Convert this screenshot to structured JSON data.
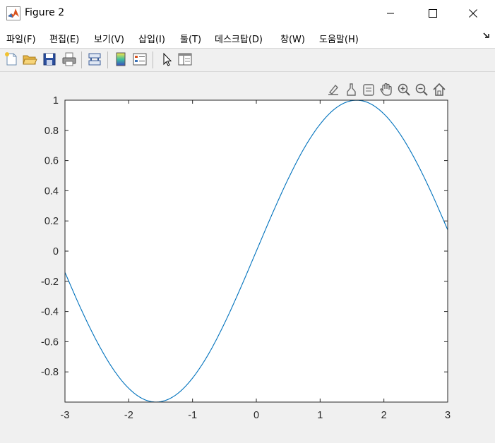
{
  "window": {
    "title": "Figure 2",
    "app_icon": "matlab-icon",
    "controls": [
      "minimize-icon",
      "maximize-icon",
      "close-icon"
    ]
  },
  "menu": {
    "items": [
      "파일(F)",
      "편집(E)",
      "보기(V)",
      "삽입(I)",
      "툴(T)",
      "데스크탑(D)",
      "창(W)",
      "도움말(H)"
    ],
    "dock_icon": "dock-arrow-icon"
  },
  "toolbar": {
    "buttons": [
      "new-figure-icon",
      "open-file-icon",
      "save-icon",
      "print-icon",
      "link-plot-icon",
      "insert-colorbar-icon",
      "insert-legend-icon",
      "edit-plot-arrow-icon",
      "property-inspector-icon"
    ]
  },
  "axes_toolbar": {
    "buttons": [
      "brush-edit-icon",
      "data-tips-icon",
      "datatip-list-icon",
      "pan-hand-icon",
      "zoom-in-icon",
      "zoom-out-icon",
      "home-reset-icon"
    ]
  },
  "chart_data": {
    "type": "line",
    "title": "",
    "xlabel": "",
    "ylabel": "",
    "xlim": [
      -3,
      3
    ],
    "ylim": [
      -1,
      1
    ],
    "xticks": [
      "-3",
      "-2",
      "-1",
      "0",
      "1",
      "2",
      "3"
    ],
    "yticks": [
      "1",
      "0.8",
      "0.6",
      "0.4",
      "0.2",
      "0",
      "-0.2",
      "-0.4",
      "-0.6",
      "-0.8"
    ],
    "series": [
      {
        "function": "sin(x)",
        "color": "#0072bd",
        "x": [
          -3,
          -2.75,
          -2.5,
          -2.25,
          -2,
          -1.75,
          -1.5,
          -1.25,
          -1,
          -0.75,
          -0.5,
          -0.25,
          0,
          0.25,
          0.5,
          0.75,
          1,
          1.25,
          1.5,
          1.75,
          2,
          2.25,
          2.5,
          2.75,
          3
        ],
        "y": [
          -0.141,
          -0.382,
          -0.598,
          -0.778,
          -0.909,
          -0.984,
          -0.997,
          -0.949,
          -0.841,
          -0.682,
          -0.479,
          -0.247,
          0,
          0.247,
          0.479,
          0.682,
          0.841,
          0.949,
          0.997,
          0.984,
          0.909,
          0.778,
          0.598,
          0.382,
          0.141
        ]
      }
    ],
    "grid": false,
    "box": true
  }
}
